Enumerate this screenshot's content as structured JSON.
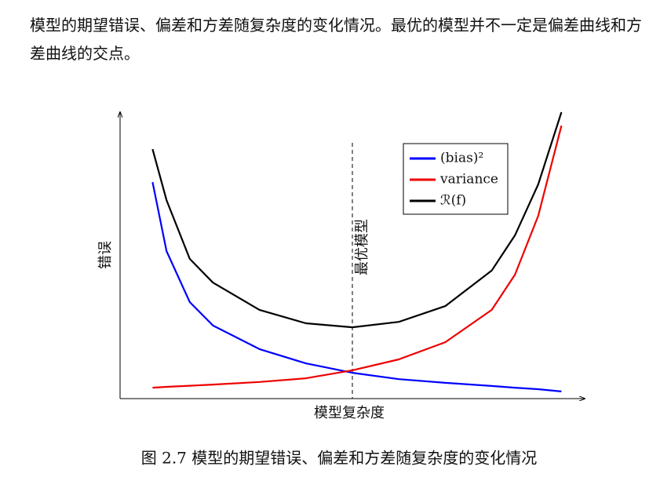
{
  "paragraph": "模型的期望错误、偏差和方差随复杂度的变化情况。最优的模型并不一定是偏差曲线和方差曲线的交点。",
  "chart_data": {
    "type": "line",
    "x_label": "模型复杂度",
    "y_label": "错误",
    "annotation": {
      "label": "最优模型",
      "x": 5.0
    },
    "x": [
      0.7,
      1,
      1.5,
      2,
      3,
      4,
      5,
      6,
      7,
      8,
      8.5,
      9,
      9.5
    ],
    "series": [
      {
        "name": "(bias)²",
        "color": "#0000ff",
        "values": [
          7.56,
          5.15,
          3.37,
          2.55,
          1.73,
          1.23,
          0.9,
          0.68,
          0.55,
          0.44,
          0.38,
          0.33,
          0.25
        ]
      },
      {
        "name": "variance",
        "color": "#ee0000",
        "values": [
          0.38,
          0.41,
          0.45,
          0.49,
          0.58,
          0.71,
          0.99,
          1.37,
          1.97,
          3.1,
          4.33,
          6.38,
          9.53
        ]
      },
      {
        "name": "ℛ(f)",
        "color": "#000000",
        "values": [
          8.71,
          6.93,
          4.88,
          4.05,
          3.1,
          2.63,
          2.49,
          2.68,
          3.23,
          4.47,
          5.7,
          7.48,
          10
        ]
      }
    ],
    "xlim": [
      0,
      10
    ],
    "ylim": [
      0,
      10
    ],
    "legend": "upper right"
  },
  "caption": "图 2.7 模型的期望错误、偏差和方差随复杂度的变化情况"
}
